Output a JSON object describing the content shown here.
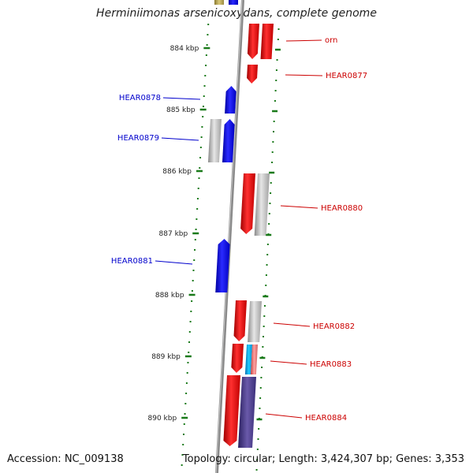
{
  "title": "Herminiimonas arsenicoxydans, complete genome",
  "footer": {
    "accession": "Accession: NC_009138",
    "topology": "Topology: circular; Length: 3,424,307 bp; Genes: 3,353"
  },
  "colors": {
    "forward_strand": "#ee0000",
    "reverse_strand": "#0000ee",
    "gray_feature": "#b4b4b4",
    "cyan_feature": "#00aaee",
    "pink_feature": "#f07070",
    "purple_feature": "#4a3a8a",
    "tick": "#1a7a1a",
    "backbone": "#888888"
  },
  "scale_ticks": [
    {
      "label": "884 kbp",
      "kbp": 884
    },
    {
      "label": "885 kbp",
      "kbp": 885
    },
    {
      "label": "886 kbp",
      "kbp": 886
    },
    {
      "label": "887 kbp",
      "kbp": 887
    },
    {
      "label": "888 kbp",
      "kbp": 888
    },
    {
      "label": "889 kbp",
      "kbp": 889
    },
    {
      "label": "890 kbp",
      "kbp": 890
    }
  ],
  "gene_labels": [
    {
      "name": "orn",
      "side": "right",
      "color": "#cc0000"
    },
    {
      "name": "HEAR0877",
      "side": "right",
      "color": "#cc0000"
    },
    {
      "name": "HEAR0878",
      "side": "left",
      "color": "#0000cc"
    },
    {
      "name": "HEAR0879",
      "side": "left",
      "color": "#0000cc"
    },
    {
      "name": "HEAR0880",
      "side": "right",
      "color": "#cc0000"
    },
    {
      "name": "HEAR0881",
      "side": "left",
      "color": "#0000cc"
    },
    {
      "name": "HEAR0882",
      "side": "right",
      "color": "#cc0000"
    },
    {
      "name": "HEAR0883",
      "side": "right",
      "color": "#cc0000"
    },
    {
      "name": "HEAR0884",
      "side": "right",
      "color": "#cc0000"
    }
  ]
}
